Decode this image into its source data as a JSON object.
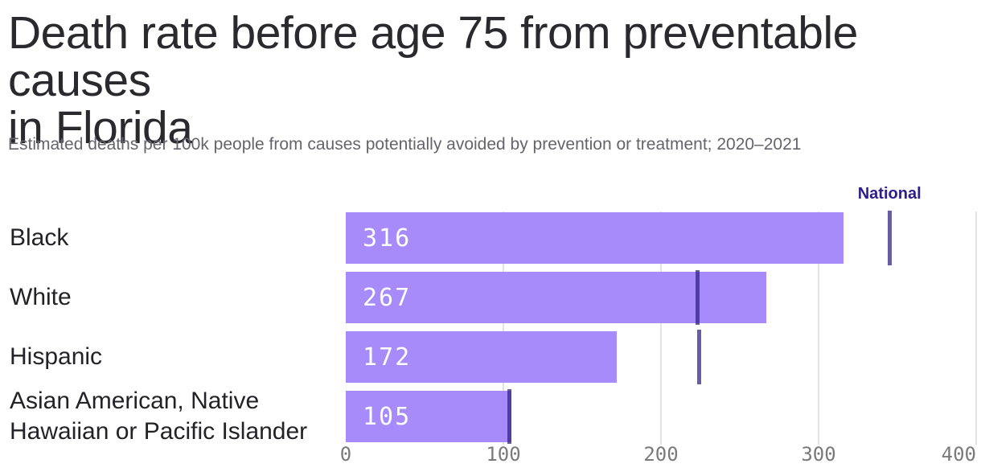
{
  "header": {
    "title": "Death rate before age 75 from preventable causes in Florida",
    "title_lines": [
      "Death rate before age 75 from preventable causes",
      "in Florida"
    ],
    "subtitle": "Estimated deaths per 100k people from causes potentially avoided by prevention or treatment; 2020–2021"
  },
  "colors": {
    "bar": "#a78bfa",
    "national_tick": "#2d1e82",
    "national_label": "#2e1d8c",
    "title": "#2a292e",
    "subtitle": "#65646c",
    "category": "#232227",
    "axis": "#7a7a7a",
    "gridline": "#e4e4e4",
    "value_label": "#ffffff",
    "background": "#ffffff"
  },
  "chart_data": {
    "type": "bar",
    "orientation": "horizontal",
    "title": "Death rate before age 75 from preventable causes in Florida",
    "subtitle": "Estimated deaths per 100k people from causes potentially avoided by prevention or treatment; 2020–2021",
    "categories": [
      "Black",
      "White",
      "Hispanic",
      "Asian American, Native Hawaiian or Pacific Islander"
    ],
    "values": [
      316,
      267,
      172,
      105
    ],
    "series": [
      {
        "name": "Florida",
        "values": [
          316,
          267,
          172,
          105
        ]
      },
      {
        "name": "National",
        "values": [
          345,
          223,
          224,
          104
        ]
      }
    ],
    "national_label": "National",
    "xlabel": "",
    "ylabel": "",
    "xlim": [
      0,
      400
    ],
    "xticks": [
      0,
      100,
      200,
      300,
      400
    ],
    "grid": "vertical",
    "legend_position": "top-right-inline-marker"
  }
}
